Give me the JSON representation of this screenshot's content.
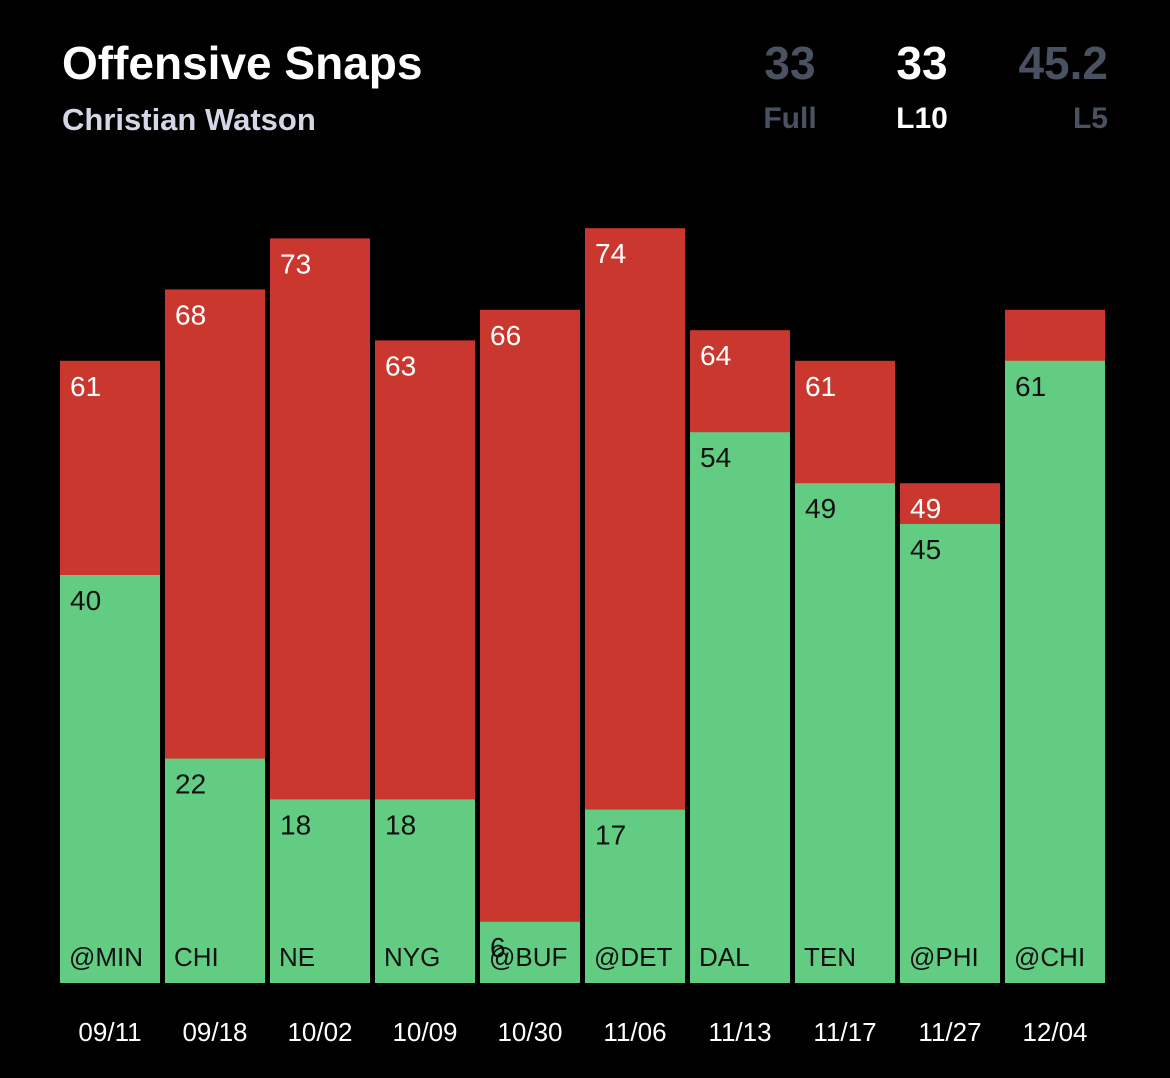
{
  "header": {
    "title": "Offensive Snaps",
    "player": "Christian Watson"
  },
  "stats": {
    "full": {
      "value": "33",
      "label": "Full"
    },
    "l10": {
      "value": "33",
      "label": "L10"
    },
    "l5": {
      "value": "45.2",
      "label": "L5"
    }
  },
  "colors": {
    "background": "#000000",
    "team_snaps": "#c9372f",
    "player_snaps": "#62cc82",
    "muted_stat": "#4a5262"
  },
  "chart_data": {
    "type": "bar",
    "categories": [
      "09/11",
      "09/18",
      "10/02",
      "10/09",
      "10/30",
      "11/06",
      "11/13",
      "11/17",
      "11/27",
      "12/04"
    ],
    "opponents": [
      "@MIN",
      "CHI",
      "NE",
      "NYG",
      "@BUF",
      "@DET",
      "DAL",
      "TEN",
      "@PHI",
      "@CHI"
    ],
    "series": [
      {
        "values": [
          61,
          68,
          73,
          63,
          66,
          74,
          64,
          61,
          49,
          66
        ],
        "labels": [
          "61",
          "68",
          "73",
          "63",
          "66",
          "74",
          "64",
          "61",
          "49",
          ""
        ]
      },
      {
        "values": [
          40,
          22,
          18,
          18,
          6,
          17,
          54,
          49,
          45,
          61
        ],
        "labels": [
          "40",
          "22",
          "18",
          "18",
          "6",
          "17",
          "54",
          "49",
          "45",
          "61"
        ]
      }
    ],
    "ylim": [
      0,
      74
    ],
    "grid": false,
    "legend": "none"
  }
}
